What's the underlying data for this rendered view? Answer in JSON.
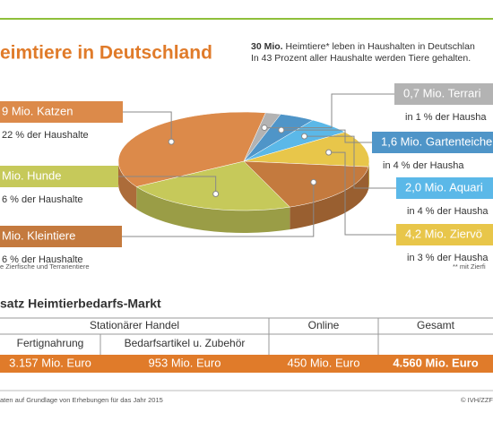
{
  "header": {
    "title": "eimtiere in Deutschland",
    "lead_bold": "30 Mio.",
    "lead": "Heimtiere* leben in Haushalten in Deutschlan",
    "lead2": "In 43 Prozent aller Haushalte werden Tiere gehalten."
  },
  "chart_data": {
    "type": "pie",
    "values": [
      0.7,
      1.6,
      2.0,
      4.2,
      6.1,
      7.9,
      12.9
    ],
    "colors": [
      "#b3b3b3",
      "#4f95c8",
      "#5bb8e8",
      "#e8c64a",
      "#c47a3e",
      "#c6c95a",
      "#dc8a4a"
    ],
    "labels": [
      {
        "title": "0,7 Mio. Terrari",
        "sub": "in 1 % der Hausha"
      },
      {
        "title": "1,6 Mio. Gartenteiche",
        "sub": "in 4 % der Hausha"
      },
      {
        "title": "2,0 Mio. Aquari",
        "sub": "in 4 % der Hausha"
      },
      {
        "title": "4,2 Mio. Ziervö",
        "sub": "in 3 % der Hausha"
      },
      {
        "title": "Mio. Kleintiere",
        "sub": "6 % der Haushalte"
      },
      {
        "title": "Mio. Hunde",
        "sub": "6 % der Haushalte"
      },
      {
        "title": "9 Mio. Katzen",
        "sub": "22 % der Haushalte"
      }
    ],
    "notes": [
      "e Zierfische und Terrarientiere",
      "** mit Zierfi"
    ]
  },
  "table": {
    "title": "satz Heimtierbedarfs-Markt",
    "header": [
      "Stationärer Handel",
      "Online",
      "Gesamt"
    ],
    "subheader": [
      "Fertignahrung",
      "Bedarfsartikel u. Zubehör"
    ],
    "row": [
      "3.157 Mio. Euro",
      "953 Mio. Euro",
      "450 Mio. Euro",
      "4.560 Mio. Euro"
    ]
  },
  "footer": {
    "source": "aten auf Grundlage von Erhebungen für das Jahr 2015",
    "copyright": "© IVH/ZZF"
  }
}
